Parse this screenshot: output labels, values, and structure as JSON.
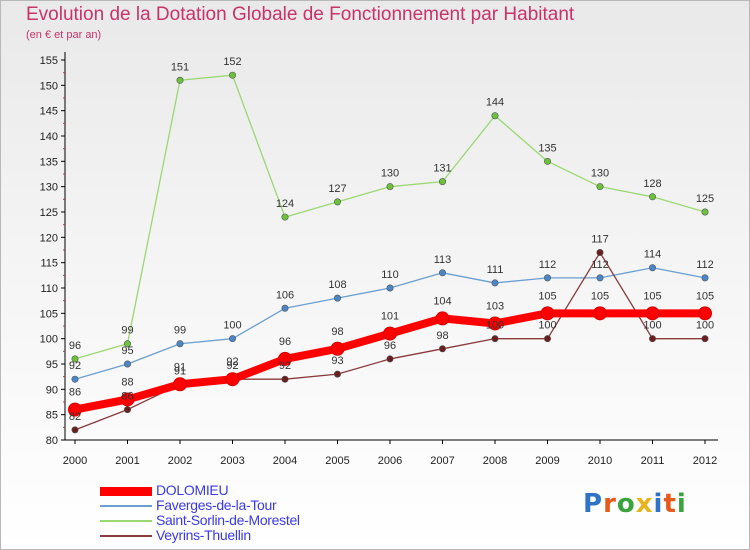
{
  "header": {
    "title": "Evolution de la Dotation Globale de Fonctionnement par Habitant",
    "subtitle": "(en € et par an)"
  },
  "logo": {
    "text": "Proxiti",
    "colors": [
      "#2e73c8",
      "#e85a1b",
      "#3aa33a",
      "#e8b31b",
      "#2e73c8",
      "#e85a1b",
      "#3aa33a"
    ]
  },
  "chart_data": {
    "type": "line",
    "title": "Evolution de la Dotation Globale de Fonctionnement par Habitant",
    "subtitle": "(en € et par an)",
    "x": [
      "2000",
      "2001",
      "2002",
      "2003",
      "2004",
      "2005",
      "2006",
      "2007",
      "2008",
      "2009",
      "2010",
      "2011",
      "2012"
    ],
    "ylim": [
      80,
      155
    ],
    "yticks": [
      "80",
      "85",
      "90",
      "95",
      "100",
      "105",
      "110",
      "115",
      "120",
      "125",
      "130",
      "135",
      "140",
      "145",
      "150",
      "155"
    ],
    "grid": false,
    "legend_position": "bottom-left",
    "series": [
      {
        "name": "DOLOMIEU",
        "color": "#ff0000",
        "marker_color": "#ff0000",
        "values": [
          86,
          88,
          91,
          92,
          96,
          98,
          101,
          104,
          103,
          105,
          105,
          105,
          105
        ],
        "labels": [
          "86",
          "88",
          "91",
          "92",
          "96",
          "98",
          "101",
          "104",
          "103",
          "105",
          "105",
          "105",
          "105"
        ]
      },
      {
        "name": "Faverges-de-la-Tour",
        "color": "#6a9fd2",
        "marker_color": "#4a86c8",
        "values": [
          92,
          95,
          99,
          100,
          106,
          108,
          110,
          113,
          111,
          112,
          112,
          114,
          112
        ],
        "labels": [
          "92",
          "95",
          "99",
          "100",
          "106",
          "108",
          "110",
          "113",
          "111",
          "112",
          "112",
          "114",
          "112"
        ]
      },
      {
        "name": "Saint-Sorlin-de-Morestel",
        "color": "#9ad872",
        "marker_color": "#6cc23a",
        "values": [
          96,
          99,
          151,
          152,
          124,
          127,
          130,
          131,
          144,
          135,
          130,
          128,
          125
        ],
        "labels": [
          "96",
          "99",
          "151",
          "152",
          "124",
          "127",
          "130",
          "131",
          "144",
          "135",
          "130",
          "128",
          "125"
        ]
      },
      {
        "name": "Veyrins-Thuellin",
        "color": "#8a3a3a",
        "marker_color": "#6a1e1e",
        "values": [
          82,
          86,
          91,
          92,
          92,
          93,
          96,
          98,
          100,
          100,
          117,
          100,
          100
        ],
        "labels": [
          "82",
          "86",
          "91",
          "92",
          "92",
          "93",
          "96",
          "98",
          "100",
          "100",
          "117",
          "100",
          "100"
        ]
      }
    ]
  }
}
